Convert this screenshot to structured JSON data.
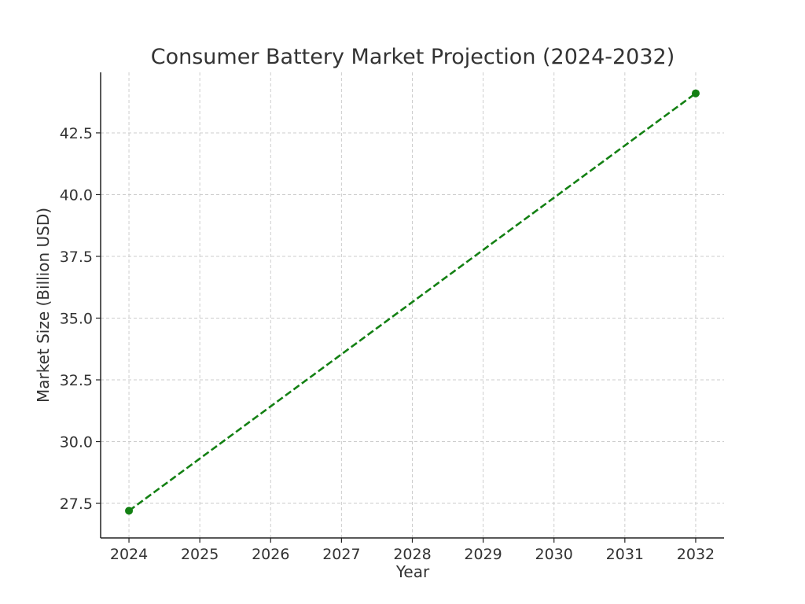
{
  "chart_data": {
    "type": "line",
    "title": "Consumer Battery Market Projection (2024-2032)",
    "xlabel": "Year",
    "ylabel": "Market Size (Billion USD)",
    "x": [
      2024,
      2032
    ],
    "series": [
      {
        "values": [
          27.2,
          44.1
        ],
        "color": "#138013",
        "line_style": "dashed",
        "marker": "circle"
      }
    ],
    "x_ticks": [
      "2024",
      "2025",
      "2026",
      "2027",
      "2028",
      "2029",
      "2030",
      "2031",
      "2032"
    ],
    "y_ticks": [
      "27.5",
      "30.0",
      "32.5",
      "35.0",
      "37.5",
      "40.0",
      "42.5"
    ],
    "xlim": [
      2023.6,
      2032.4
    ],
    "ylim": [
      26.1,
      44.95
    ],
    "grid": true
  }
}
